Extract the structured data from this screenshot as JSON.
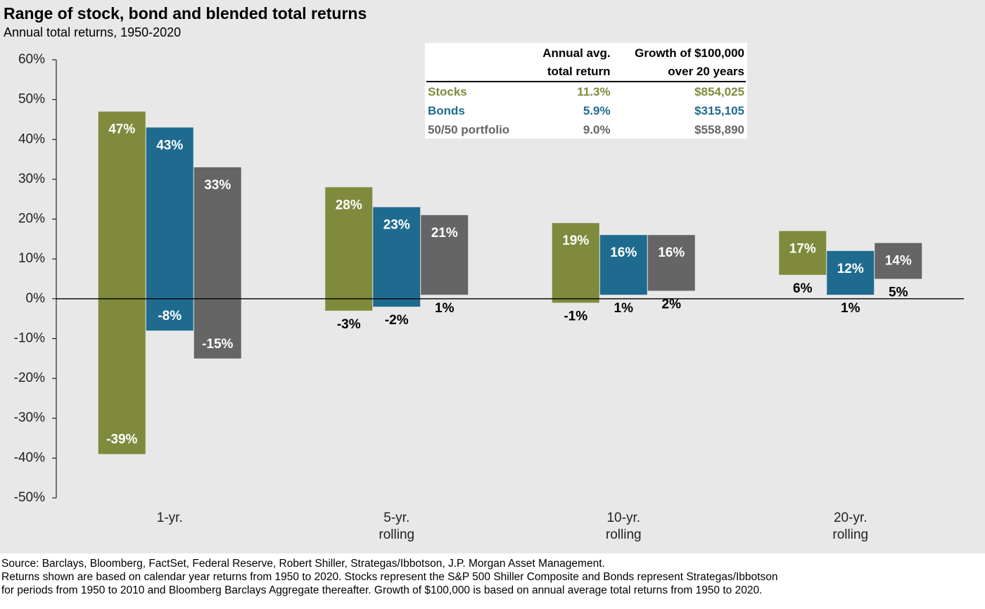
{
  "chart_data": {
    "type": "floating_bar",
    "title": "Range of stock, bond and blended total returns",
    "subtitle": "Annual total returns, 1950-2020",
    "categories": [
      "1-yr.",
      "5-yr. rolling",
      "10-yr. rolling",
      "20-yr. rolling"
    ],
    "series": [
      {
        "name": "Stocks",
        "color": "#7f8a3c",
        "high": [
          47,
          28,
          19,
          17
        ],
        "low": [
          -39,
          -3,
          -1,
          6
        ],
        "high_labels": [
          "47%",
          "28%",
          "19%",
          "17%"
        ],
        "low_labels": [
          "-39%",
          "-3%",
          "-1%",
          "6%"
        ]
      },
      {
        "name": "Bonds",
        "color": "#1f6b8f",
        "high": [
          43,
          23,
          16,
          12
        ],
        "low": [
          -8,
          -2,
          1,
          1
        ],
        "high_labels": [
          "43%",
          "23%",
          "16%",
          "12%"
        ],
        "low_labels": [
          "-8%",
          "-2%",
          "1%",
          "1%"
        ]
      },
      {
        "name": "50/50 portfolio",
        "color": "#656565",
        "high": [
          33,
          21,
          16,
          14
        ],
        "low": [
          -15,
          1,
          2,
          5
        ],
        "high_labels": [
          "33%",
          "21%",
          "16%",
          "14%"
        ],
        "low_labels": [
          "-15%",
          "1%",
          "2%",
          "5%"
        ]
      }
    ],
    "ylim": [
      -50,
      60
    ],
    "yticks": [
      {
        "value": -50,
        "label": "-50%"
      },
      {
        "value": -40,
        "label": "-40%"
      },
      {
        "value": -30,
        "label": "-30%"
      },
      {
        "value": -20,
        "label": "-20%"
      },
      {
        "value": -10,
        "label": "-10%"
      },
      {
        "value": 0,
        "label": "0%"
      },
      {
        "value": 10,
        "label": "10%"
      },
      {
        "value": 20,
        "label": "20%"
      },
      {
        "value": 30,
        "label": "30%"
      },
      {
        "value": 40,
        "label": "40%"
      },
      {
        "value": 50,
        "label": "50%"
      },
      {
        "value": 60,
        "label": "60%"
      }
    ],
    "grid": false,
    "table": {
      "columns": [
        [
          "Annual avg.",
          "total return"
        ],
        [
          "Growth of $100,000",
          "over 20 years"
        ]
      ],
      "rows": [
        [
          "11.3%",
          "$854,025"
        ],
        [
          "5.9%",
          "$315,105"
        ],
        [
          "9.0%",
          "$558,890"
        ]
      ]
    },
    "source": "Source: Barclays, Bloomberg, FactSet, Federal Reserve, Robert Shiller, Strategas/Ibbotson, J.P. Morgan Asset Management.",
    "note": "Returns shown are based on calendar year returns from 1950 to 2020. Stocks represent the S&P 500 Shiller Composite and Bonds represent Strategas/Ibbotson for periods from 1950 to 2010 and Bloomberg Barclays Aggregate thereafter. Growth of $100,000 is based on annual average total returns from 1950 to 2020."
  }
}
